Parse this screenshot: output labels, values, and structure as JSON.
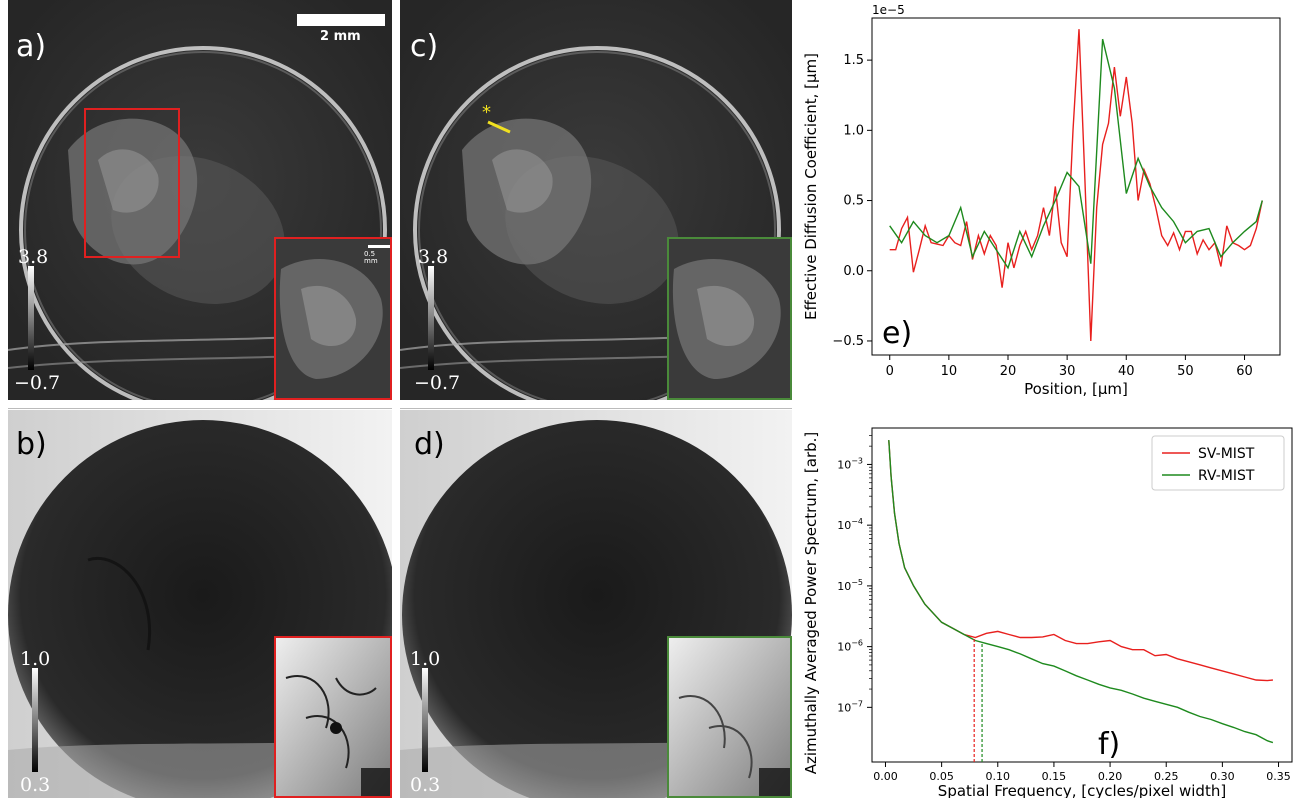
{
  "panels": {
    "a": {
      "label": "a)",
      "cb_max": "3.8",
      "cb_min": "−0.7",
      "scalebar": "2 mm",
      "inset_scalebar": "0.5 mm",
      "inset_color": "#e02020"
    },
    "b": {
      "label": "b)",
      "cb_max": "1.0",
      "cb_min": "0.3",
      "inset_color": "#e02020"
    },
    "c": {
      "label": "c)",
      "cb_max": "3.8",
      "cb_min": "−0.7",
      "marker": "*",
      "inset_color": "#4a8a3a"
    },
    "d": {
      "label": "d)",
      "cb_max": "1.0",
      "cb_min": "0.3",
      "inset_color": "#4a8a3a"
    }
  },
  "chart_data": [
    {
      "panel_label": "e)",
      "type": "line",
      "xlabel": "Position, [μm]",
      "ylabel": "Effective Diffusion Coefficient, [μm]",
      "offset_text": "1e−5",
      "xlim": [
        -3,
        66
      ],
      "ylim": [
        -0.6,
        1.8
      ],
      "xticks": [
        0,
        10,
        20,
        30,
        40,
        50,
        60
      ],
      "xtick_labels": [
        "0",
        "10",
        "20",
        "30",
        "40",
        "50",
        "60"
      ],
      "yticks": [
        -0.5,
        0.0,
        0.5,
        1.0,
        1.5
      ],
      "ytick_labels": [
        "−0.5",
        "0.0",
        "0.5",
        "1.0",
        "1.5"
      ],
      "grid": false,
      "series": [
        {
          "color": "#e8201e",
          "x": [
            0,
            1,
            2,
            3,
            4,
            5,
            6,
            7,
            8,
            9,
            10,
            11,
            12,
            13,
            14,
            15,
            16,
            17,
            18,
            19,
            20,
            21,
            22,
            23,
            24,
            25,
            26,
            27,
            28,
            29,
            30,
            31,
            32,
            33,
            34,
            35,
            36,
            37,
            38,
            39,
            40,
            41,
            42,
            43,
            44,
            45,
            46,
            47,
            48,
            49,
            50,
            51,
            52,
            53,
            54,
            55,
            56,
            57,
            58,
            59,
            60,
            61,
            62,
            63
          ],
          "y": [
            0.15,
            0.15,
            0.3,
            0.38,
            -0.01,
            0.15,
            0.32,
            0.2,
            0.19,
            0.18,
            0.25,
            0.2,
            0.18,
            0.35,
            0.08,
            0.25,
            0.12,
            0.25,
            0.18,
            -0.12,
            0.2,
            0.02,
            0.18,
            0.28,
            0.15,
            0.25,
            0.45,
            0.25,
            0.6,
            0.2,
            0.1,
            1.0,
            1.72,
            0.65,
            -0.5,
            0.45,
            0.9,
            1.05,
            1.45,
            1.1,
            1.38,
            1.05,
            0.5,
            0.72,
            0.62,
            0.45,
            0.25,
            0.18,
            0.27,
            0.15,
            0.28,
            0.28,
            0.12,
            0.22,
            0.15,
            0.2,
            0.03,
            0.32,
            0.2,
            0.18,
            0.15,
            0.18,
            0.3,
            0.5
          ]
        },
        {
          "color": "#1e8a1e",
          "x": [
            0,
            2,
            4,
            6,
            8,
            10,
            12,
            14,
            16,
            18,
            20,
            22,
            24,
            26,
            28,
            30,
            32,
            34,
            36,
            38,
            40,
            42,
            44,
            46,
            48,
            50,
            52,
            54,
            56,
            58,
            60,
            62,
            63
          ],
          "y": [
            0.32,
            0.2,
            0.35,
            0.25,
            0.2,
            0.25,
            0.45,
            0.1,
            0.28,
            0.15,
            0.02,
            0.28,
            0.1,
            0.32,
            0.5,
            0.7,
            0.6,
            0.05,
            1.65,
            1.3,
            0.55,
            0.8,
            0.6,
            0.45,
            0.35,
            0.2,
            0.28,
            0.3,
            0.1,
            0.2,
            0.28,
            0.35,
            0.5
          ]
        }
      ]
    },
    {
      "panel_label": "f)",
      "type": "line",
      "xlabel": "Spatial Frequency, [cycles/pixel width]",
      "ylabel": "Azimuthally Averaged Power Spectrum, [arb.]",
      "xlim": [
        -0.012,
        0.362
      ],
      "ylim_log10": [
        -7.9,
        -2.4
      ],
      "yscale": "log",
      "xticks": [
        0.0,
        0.05,
        0.1,
        0.15,
        0.2,
        0.25,
        0.3,
        0.35
      ],
      "xtick_labels": [
        "0.00",
        "0.05",
        "0.10",
        "0.15",
        "0.20",
        "0.25",
        "0.30",
        "0.35"
      ],
      "ytick_exponents": [
        -7,
        -6,
        -5,
        -4,
        -3
      ],
      "legend_position": "top-right",
      "cutoff_lines": [
        {
          "x": 0.079,
          "color": "#e8201e"
        },
        {
          "x": 0.086,
          "color": "#1e8a1e"
        }
      ],
      "series": [
        {
          "name": "SV-MIST",
          "color": "#e8201e",
          "x": [
            0.003,
            0.005,
            0.008,
            0.012,
            0.017,
            0.025,
            0.035,
            0.05,
            0.06,
            0.07,
            0.08,
            0.09,
            0.1,
            0.11,
            0.12,
            0.13,
            0.14,
            0.15,
            0.16,
            0.17,
            0.18,
            0.19,
            0.2,
            0.21,
            0.22,
            0.23,
            0.24,
            0.25,
            0.26,
            0.27,
            0.28,
            0.29,
            0.3,
            0.31,
            0.32,
            0.33,
            0.34,
            0.345
          ],
          "log10y": [
            -2.6,
            -3.2,
            -3.8,
            -4.3,
            -4.7,
            -5.0,
            -5.3,
            -5.6,
            -5.7,
            -5.8,
            -5.85,
            -5.78,
            -5.75,
            -5.8,
            -5.85,
            -5.85,
            -5.84,
            -5.8,
            -5.9,
            -5.95,
            -5.95,
            -5.92,
            -5.9,
            -6.0,
            -6.05,
            -6.05,
            -6.15,
            -6.13,
            -6.2,
            -6.25,
            -6.3,
            -6.35,
            -6.4,
            -6.45,
            -6.5,
            -6.55,
            -6.56,
            -6.55
          ]
        },
        {
          "name": "RV-MIST",
          "color": "#1e8a1e",
          "x": [
            0.003,
            0.005,
            0.008,
            0.012,
            0.017,
            0.025,
            0.035,
            0.05,
            0.06,
            0.07,
            0.08,
            0.09,
            0.1,
            0.11,
            0.12,
            0.13,
            0.14,
            0.15,
            0.16,
            0.17,
            0.18,
            0.19,
            0.2,
            0.21,
            0.22,
            0.23,
            0.24,
            0.25,
            0.26,
            0.27,
            0.28,
            0.29,
            0.3,
            0.31,
            0.32,
            0.33,
            0.34,
            0.345
          ],
          "log10y": [
            -2.6,
            -3.2,
            -3.8,
            -4.3,
            -4.7,
            -5.0,
            -5.3,
            -5.6,
            -5.7,
            -5.8,
            -5.9,
            -5.95,
            -6.0,
            -6.05,
            -6.12,
            -6.2,
            -6.28,
            -6.32,
            -6.4,
            -6.48,
            -6.55,
            -6.62,
            -6.68,
            -6.72,
            -6.78,
            -6.85,
            -6.9,
            -6.95,
            -7.0,
            -7.08,
            -7.15,
            -7.2,
            -7.27,
            -7.33,
            -7.4,
            -7.45,
            -7.55,
            -7.58
          ]
        }
      ]
    }
  ]
}
